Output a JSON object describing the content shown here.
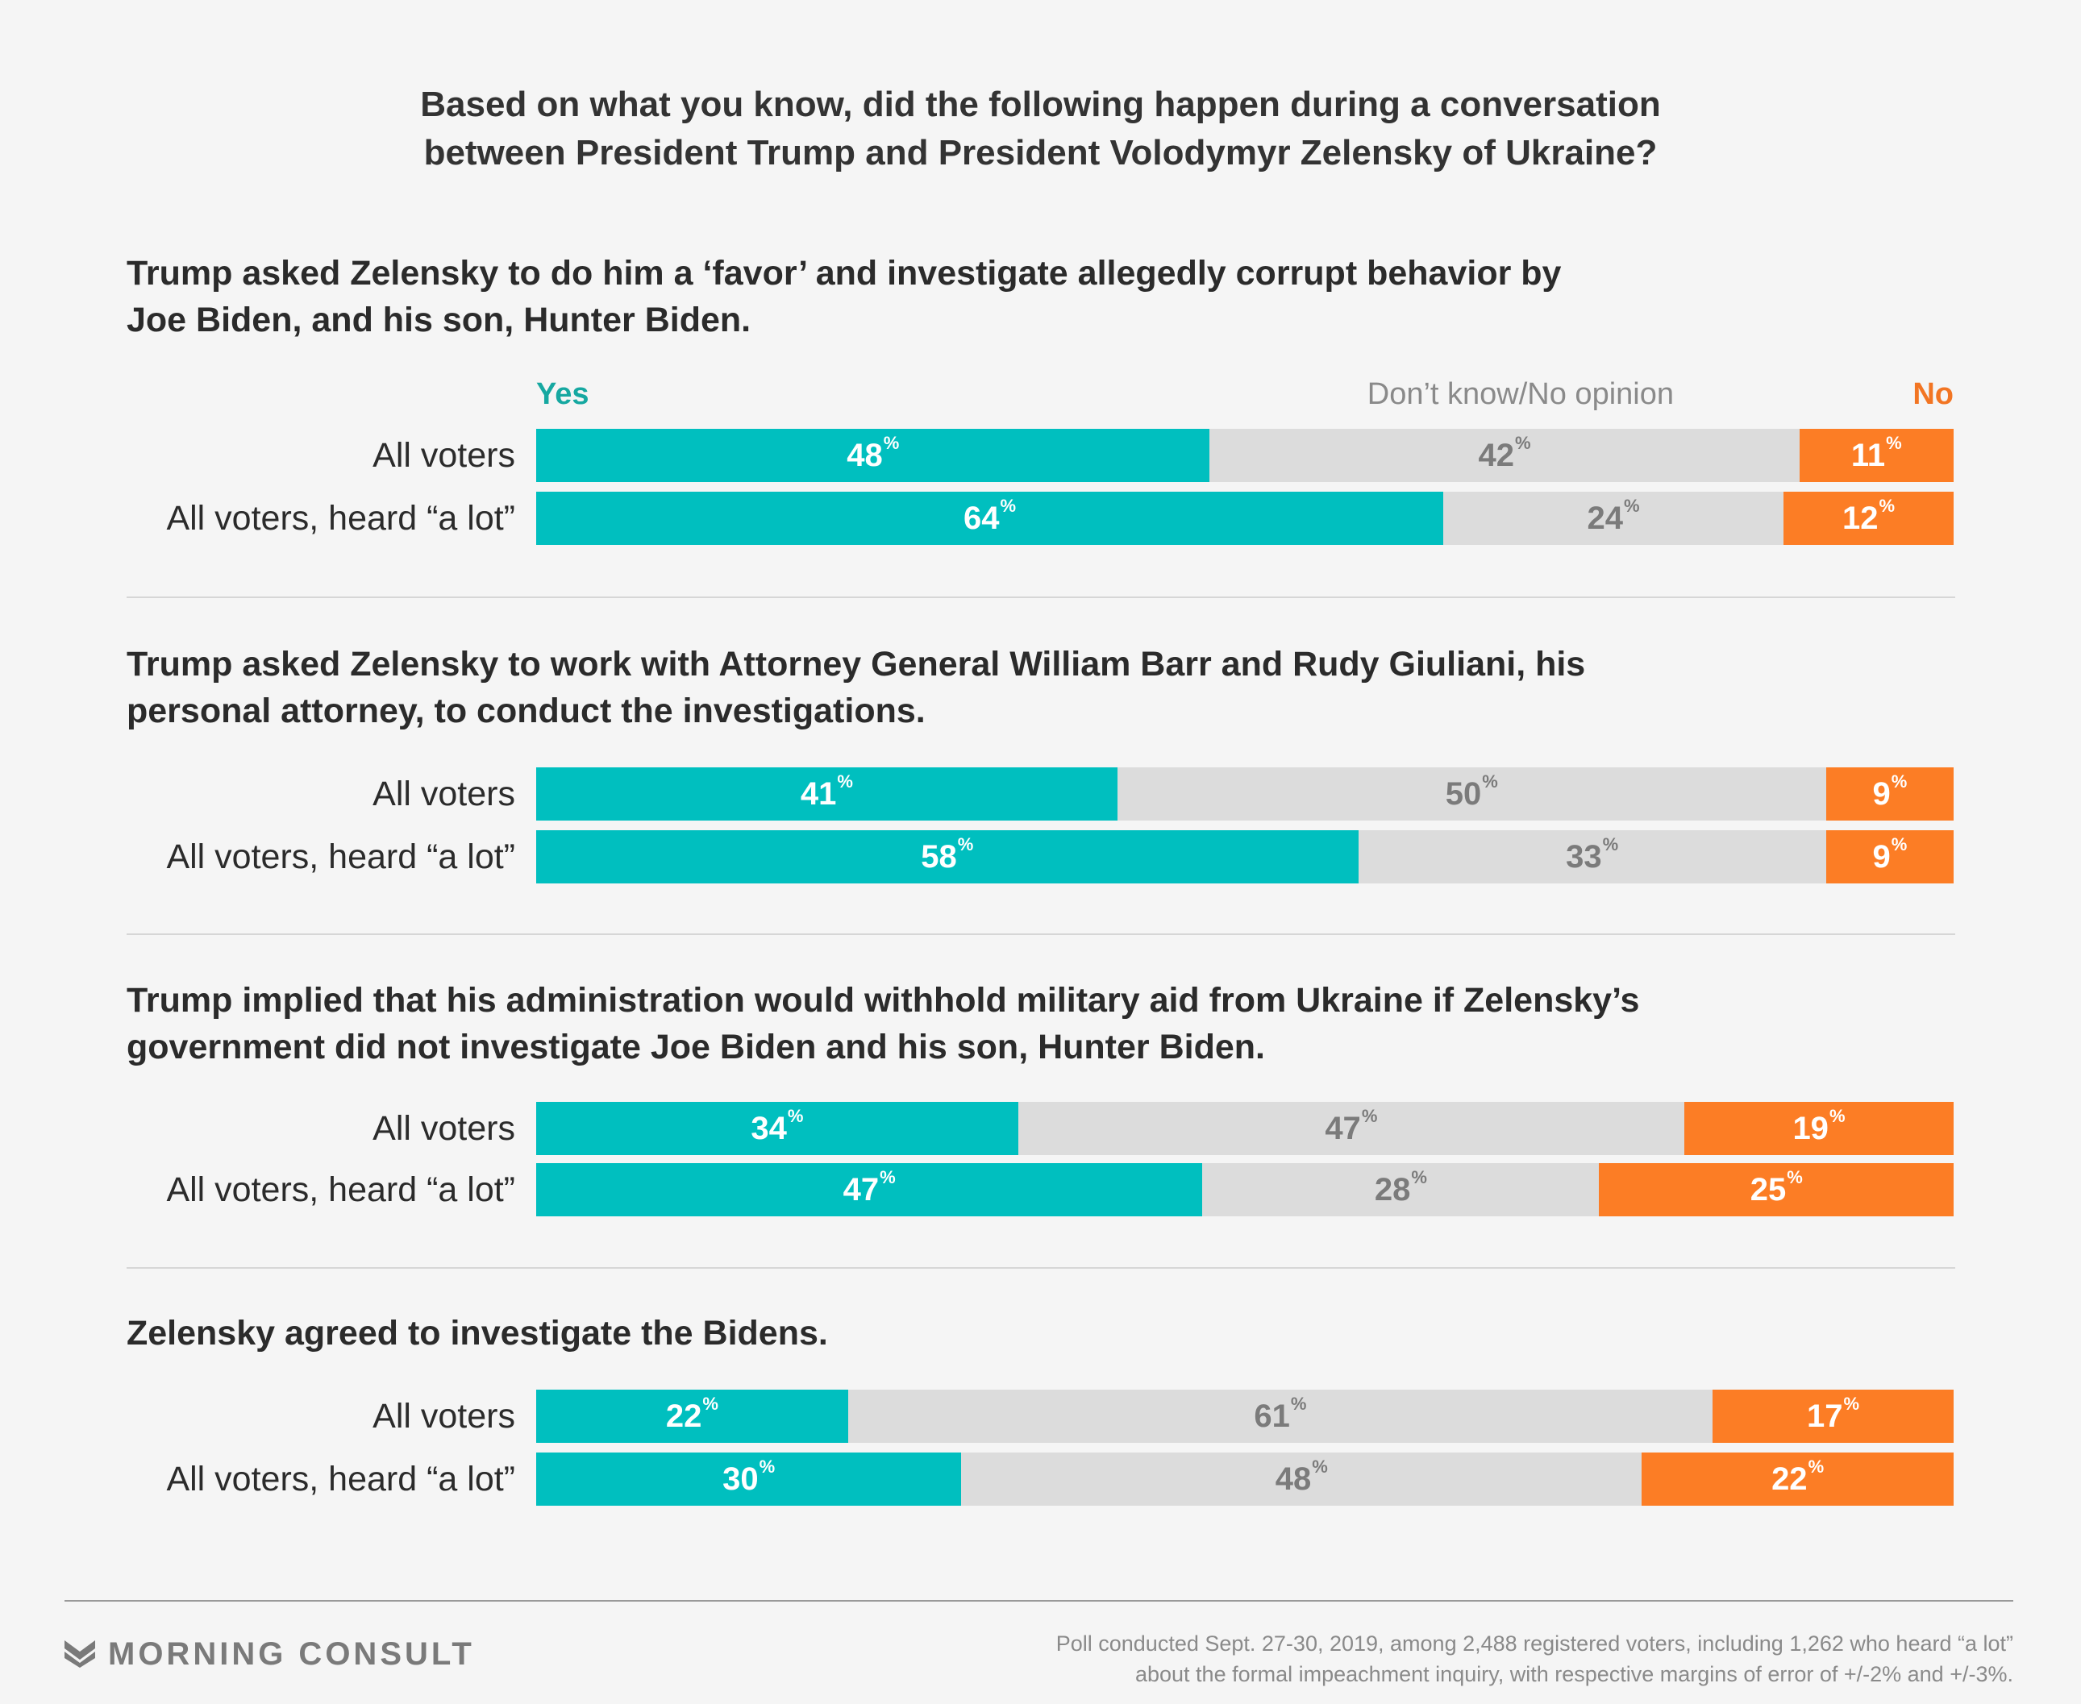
{
  "title_lines": [
    "Based on what you know, did the following happen during a conversation",
    "between President Trump and President Volodymyr Zelensky of Ukraine?"
  ],
  "legend": {
    "yes": "Yes",
    "dk": "Don’t know/No opinion",
    "no": "No"
  },
  "colors": {
    "yes": "#00bfbf",
    "dk": "#dcdcdc",
    "no": "#fc7d25",
    "yes_text": "#16a8a1",
    "no_text": "#f27523"
  },
  "chart_data": {
    "type": "bar",
    "stacked": true,
    "orientation": "horizontal",
    "unit": "%",
    "categories_legend": [
      "Yes",
      "Don’t know/No opinion",
      "No"
    ],
    "questions": [
      {
        "title_lines": [
          "Trump asked Zelensky to do him a ‘favor’ and investigate allegedly corrupt behavior by",
          "Joe Biden, and his son, Hunter Biden."
        ],
        "rows": [
          {
            "label": "All voters",
            "yes": 48,
            "dk": 42,
            "no": 11
          },
          {
            "label": "All voters, heard “a lot”",
            "yes": 64,
            "dk": 24,
            "no": 12
          }
        ]
      },
      {
        "title_lines": [
          "Trump asked Zelensky to work with Attorney General William Barr and Rudy Giuliani, his",
          "personal attorney, to conduct the investigations."
        ],
        "rows": [
          {
            "label": "All voters",
            "yes": 41,
            "dk": 50,
            "no": 9
          },
          {
            "label": "All voters, heard “a lot”",
            "yes": 58,
            "dk": 33,
            "no": 9
          }
        ]
      },
      {
        "title_lines": [
          "Trump implied that his administration would withhold military aid from Ukraine if Zelensky’s",
          "government did not investigate Joe Biden and his son, Hunter Biden."
        ],
        "rows": [
          {
            "label": "All voters",
            "yes": 34,
            "dk": 47,
            "no": 19
          },
          {
            "label": "All voters, heard “a lot”",
            "yes": 47,
            "dk": 28,
            "no": 25
          }
        ]
      },
      {
        "title_lines": [
          "Zelensky agreed to investigate the Bidens."
        ],
        "rows": [
          {
            "label": "All voters",
            "yes": 22,
            "dk": 61,
            "no": 17
          },
          {
            "label": "All voters, heard “a lot”",
            "yes": 30,
            "dk": 48,
            "no": 22
          }
        ]
      }
    ]
  },
  "footer": {
    "brand": "MORNING CONSULT",
    "logo_icon": "morning-consult-chevron-icon",
    "note_lines": [
      "Poll conducted Sept. 27-30, 2019, among 2,488 registered voters, including 1,262 who heard “a lot”",
      "about the formal impeachment inquiry, with respective margins of error of +/-2% and +/-3%."
    ]
  }
}
